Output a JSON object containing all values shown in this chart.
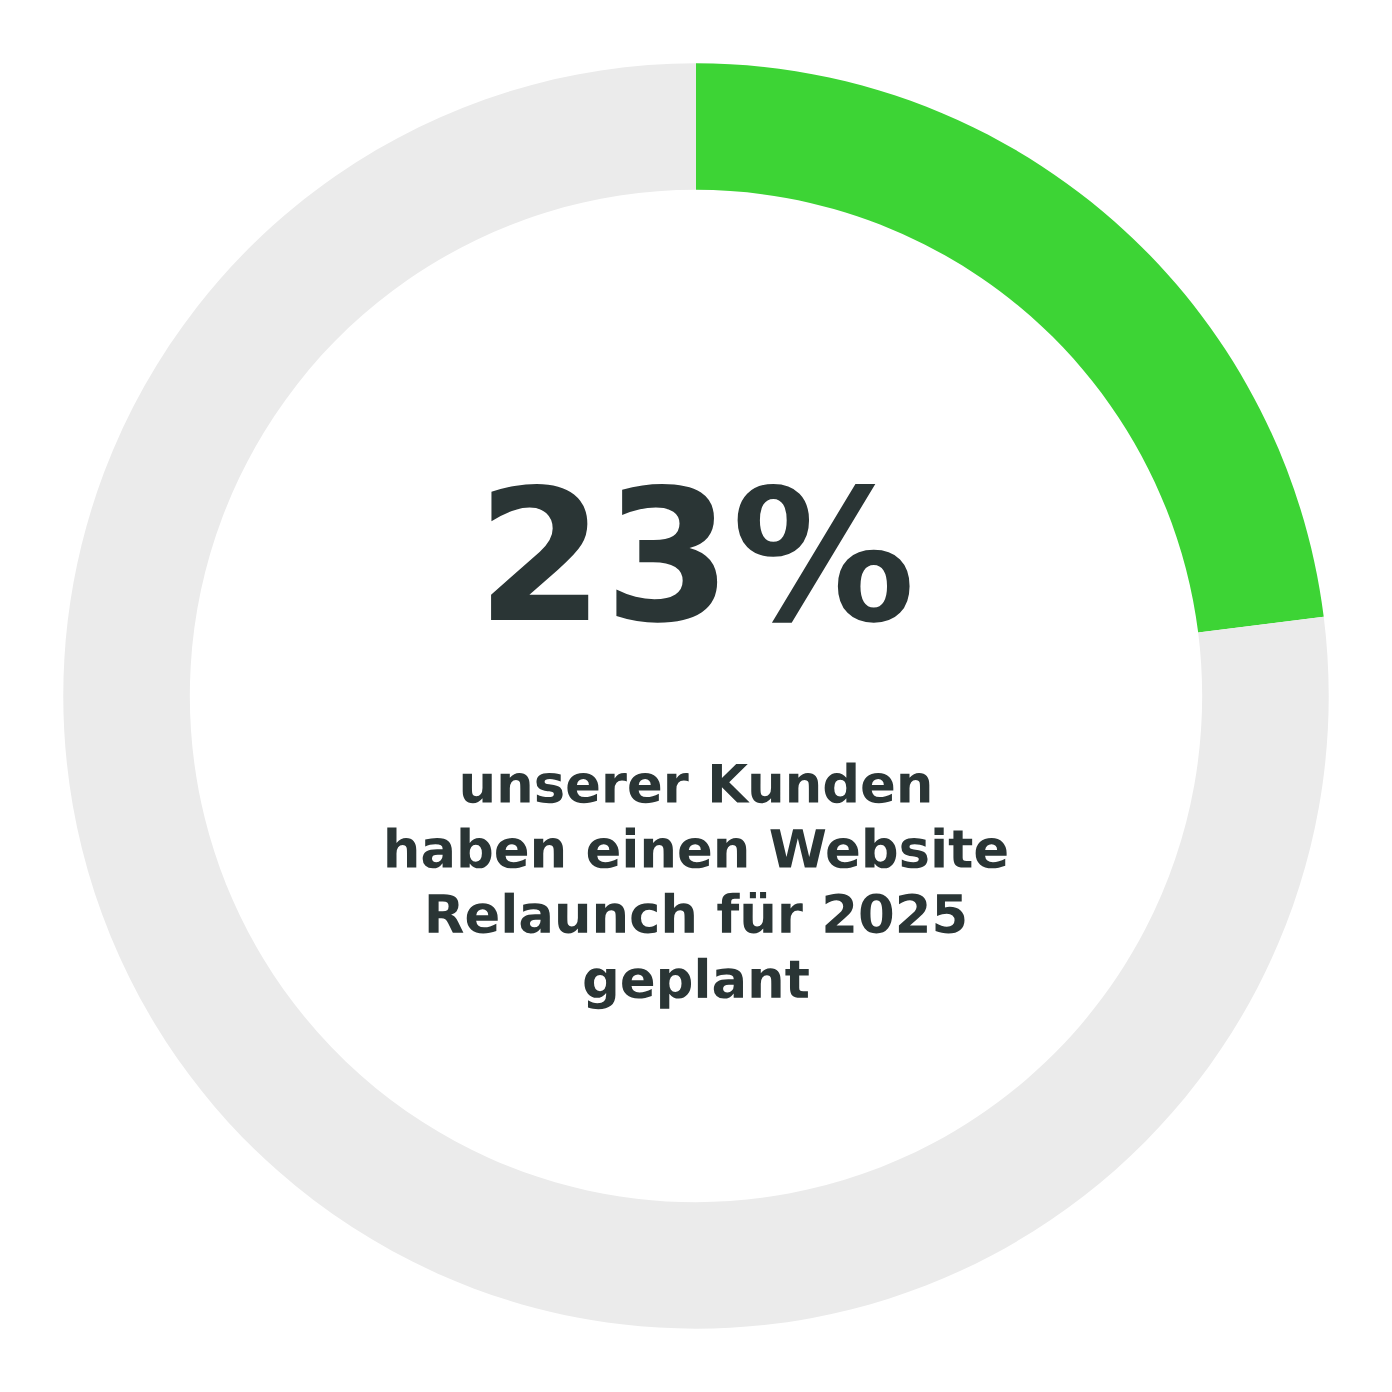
{
  "chart_data": {
    "type": "donut",
    "categories": [
      null,
      null
    ],
    "values": [
      23,
      77
    ],
    "colors": [
      "#3dd435",
      "#ebebeb"
    ],
    "annotations": [
      "23%",
      "unserer Kunden\nhaben einen Website\nRelaunch für 2025\ngeplant"
    ]
  }
}
